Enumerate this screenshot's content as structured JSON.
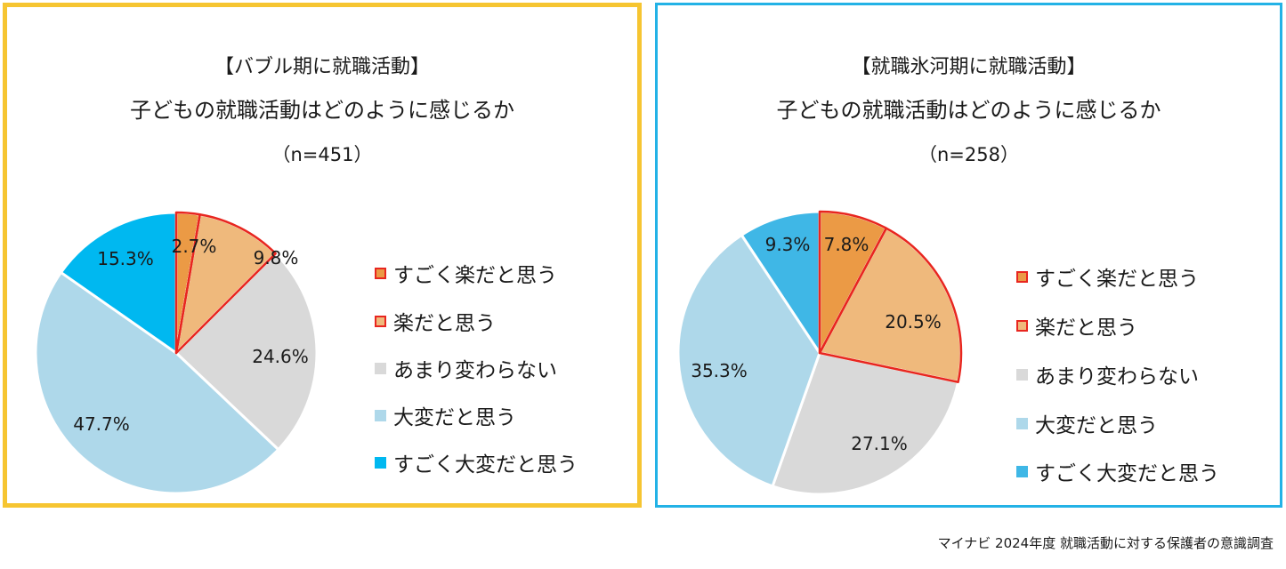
{
  "source_note": "マイナビ 2024年度 就職活動に対する保護者の意識調査",
  "chart_data": [
    {
      "type": "pie",
      "title": "【バブル期に就職活動】",
      "subtitle": "子どもの就職活動はどのように感じるか",
      "sample": "（n=451）",
      "frame_color": "#f6c531",
      "categories": [
        "すごく楽だと思う",
        "楽だと思う",
        "あまり変わらない",
        "大変だと思う",
        "すごく大変だと思う"
      ],
      "values": [
        2.7,
        9.8,
        24.6,
        47.7,
        15.3
      ],
      "labels": [
        "2.7%",
        "9.8%",
        "24.6%",
        "47.7%",
        "15.3%"
      ],
      "colors": [
        "#eb9a45",
        "#efb97c",
        "#d9d9d9",
        "#aed8ea",
        "#00b8f0"
      ],
      "highlight_colors": [
        "#e8261f",
        "#e8261f",
        null,
        null,
        null
      ],
      "legend_position": "right"
    },
    {
      "type": "pie",
      "title": "【就職氷河期に就職活動】",
      "subtitle": "子どもの就職活動はどのように感じるか",
      "sample": "（n=258）",
      "frame_color": "#23b2e6",
      "categories": [
        "すごく楽だと思う",
        "楽だと思う",
        "あまり変わらない",
        "大変だと思う",
        "すごく大変だと思う"
      ],
      "values": [
        7.8,
        20.5,
        27.1,
        35.3,
        9.3
      ],
      "labels": [
        "7.8%",
        "20.5%",
        "27.1%",
        "35.3%",
        "9.3%"
      ],
      "colors": [
        "#eb9a45",
        "#efb97c",
        "#d9d9d9",
        "#aed8ea",
        "#3fb7e6"
      ],
      "highlight_colors": [
        "#e8261f",
        "#e8261f",
        null,
        null,
        null
      ],
      "legend_position": "right"
    }
  ]
}
